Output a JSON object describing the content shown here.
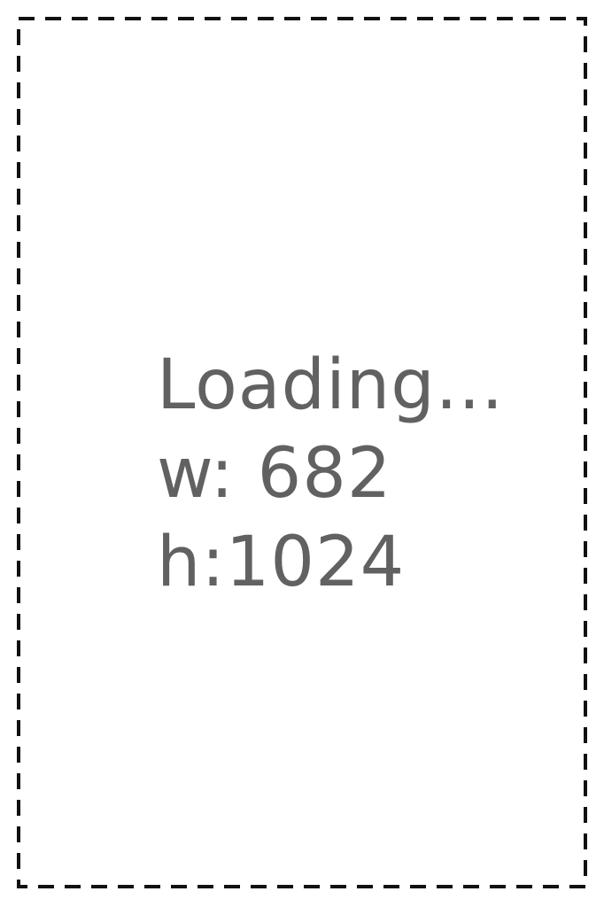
{
  "placeholder": {
    "status": "Loading...",
    "width_label": "w: 682",
    "height_label": "h:1024"
  },
  "colors": {
    "text": "#616161",
    "border": "#111111",
    "background": "#ffffff"
  }
}
